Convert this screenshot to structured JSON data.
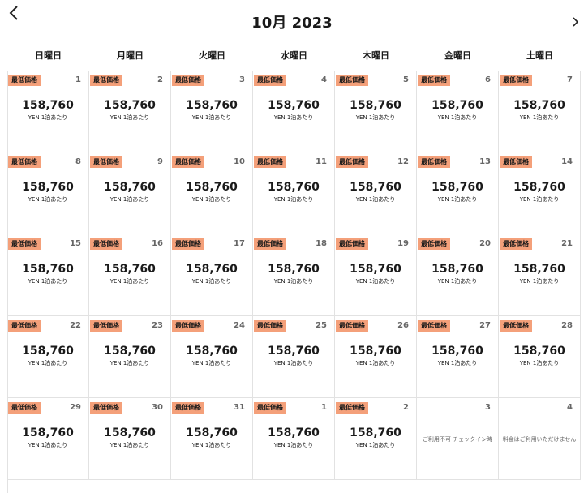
{
  "header": {
    "title": "10月 2023"
  },
  "weekdays": [
    "日曜日",
    "月曜日",
    "火曜日",
    "水曜日",
    "木曜日",
    "金曜日",
    "土曜日"
  ],
  "cells": [
    {
      "day": 1,
      "badge": "最低価格",
      "price": "158,760",
      "unit": "YEN 1泊あたり"
    },
    {
      "day": 2,
      "badge": "最低価格",
      "price": "158,760",
      "unit": "YEN 1泊あたり"
    },
    {
      "day": 3,
      "badge": "最低価格",
      "price": "158,760",
      "unit": "YEN 1泊あたり"
    },
    {
      "day": 4,
      "badge": "最低価格",
      "price": "158,760",
      "unit": "YEN 1泊あたり"
    },
    {
      "day": 5,
      "badge": "最低価格",
      "price": "158,760",
      "unit": "YEN 1泊あたり"
    },
    {
      "day": 6,
      "badge": "最低価格",
      "price": "158,760",
      "unit": "YEN 1泊あたり"
    },
    {
      "day": 7,
      "badge": "最低価格",
      "price": "158,760",
      "unit": "YEN 1泊あたり"
    },
    {
      "day": 8,
      "badge": "最低価格",
      "price": "158,760",
      "unit": "YEN 1泊あたり"
    },
    {
      "day": 9,
      "badge": "最低価格",
      "price": "158,760",
      "unit": "YEN 1泊あたり"
    },
    {
      "day": 10,
      "badge": "最低価格",
      "price": "158,760",
      "unit": "YEN 1泊あたり"
    },
    {
      "day": 11,
      "badge": "最低価格",
      "price": "158,760",
      "unit": "YEN 1泊あたり"
    },
    {
      "day": 12,
      "badge": "最低価格",
      "price": "158,760",
      "unit": "YEN 1泊あたり"
    },
    {
      "day": 13,
      "badge": "最低価格",
      "price": "158,760",
      "unit": "YEN 1泊あたり"
    },
    {
      "day": 14,
      "badge": "最低価格",
      "price": "158,760",
      "unit": "YEN 1泊あたり"
    },
    {
      "day": 15,
      "badge": "最低価格",
      "price": "158,760",
      "unit": "YEN 1泊あたり"
    },
    {
      "day": 16,
      "badge": "最低価格",
      "price": "158,760",
      "unit": "YEN 1泊あたり"
    },
    {
      "day": 17,
      "badge": "最低価格",
      "price": "158,760",
      "unit": "YEN 1泊あたり"
    },
    {
      "day": 18,
      "badge": "最低価格",
      "price": "158,760",
      "unit": "YEN 1泊あたり"
    },
    {
      "day": 19,
      "badge": "最低価格",
      "price": "158,760",
      "unit": "YEN 1泊あたり"
    },
    {
      "day": 20,
      "badge": "最低価格",
      "price": "158,760",
      "unit": "YEN 1泊あたり"
    },
    {
      "day": 21,
      "badge": "最低価格",
      "price": "158,760",
      "unit": "YEN 1泊あたり"
    },
    {
      "day": 22,
      "badge": "最低価格",
      "price": "158,760",
      "unit": "YEN 1泊あたり"
    },
    {
      "day": 23,
      "badge": "最低価格",
      "price": "158,760",
      "unit": "YEN 1泊あたり"
    },
    {
      "day": 24,
      "badge": "最低価格",
      "price": "158,760",
      "unit": "YEN 1泊あたり"
    },
    {
      "day": 25,
      "badge": "最低価格",
      "price": "158,760",
      "unit": "YEN 1泊あたり"
    },
    {
      "day": 26,
      "badge": "最低価格",
      "price": "158,760",
      "unit": "YEN 1泊あたり"
    },
    {
      "day": 27,
      "badge": "最低価格",
      "price": "158,760",
      "unit": "YEN 1泊あたり"
    },
    {
      "day": 28,
      "badge": "最低価格",
      "price": "158,760",
      "unit": "YEN 1泊あたり"
    },
    {
      "day": 29,
      "badge": "最低価格",
      "price": "158,760",
      "unit": "YEN 1泊あたり"
    },
    {
      "day": 30,
      "badge": "最低価格",
      "price": "158,760",
      "unit": "YEN 1泊あたり"
    },
    {
      "day": 31,
      "badge": "最低価格",
      "price": "158,760",
      "unit": "YEN 1泊あたり"
    },
    {
      "day": 1,
      "badge": "最低価格",
      "price": "158,760",
      "unit": "YEN 1泊あたり"
    },
    {
      "day": 2,
      "badge": "最低価格",
      "price": "158,760",
      "unit": "YEN 1泊あたり"
    },
    {
      "day": 3,
      "note": "ご利用不可 チェックイン時"
    },
    {
      "day": 4,
      "note": "料金はご利用いただけません"
    }
  ]
}
